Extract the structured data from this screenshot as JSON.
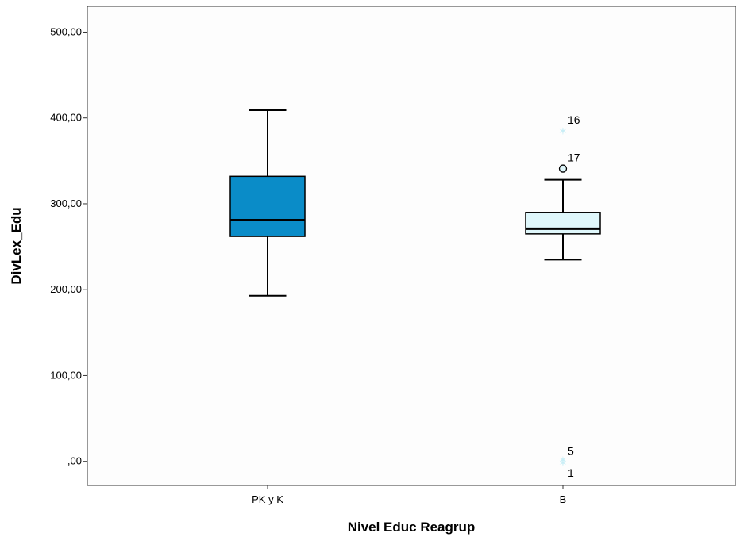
{
  "chart_data": {
    "type": "boxplot",
    "xlabel": "Nivel Educ Reagrup",
    "ylabel": "DivLex_Edu",
    "ylim": [
      -28,
      530
    ],
    "yticks": [
      0,
      100,
      200,
      300,
      400,
      500
    ],
    "ytick_labels": [
      ",00",
      "100,00",
      "200,00",
      "300,00",
      "400,00",
      "500,00"
    ],
    "grid": false,
    "categories": [
      "PK y K",
      "B"
    ],
    "boxes": [
      {
        "category": "PK y K",
        "whisker_low": 193,
        "q1": 262,
        "median": 281,
        "q3": 332,
        "whisker_high": 409,
        "color": "#0a8cc8",
        "outliers": [],
        "extremes": []
      },
      {
        "category": "B",
        "whisker_low": 235,
        "q1": 265,
        "median": 271,
        "q3": 290,
        "whisker_high": 328,
        "color": "#dff7fb",
        "outliers": [
          {
            "value": 341,
            "label": "17"
          }
        ],
        "extremes": [
          {
            "value": 385,
            "label": "16"
          },
          {
            "value": 2,
            "label": "5"
          },
          {
            "value": -1,
            "label": "1"
          }
        ]
      }
    ]
  }
}
